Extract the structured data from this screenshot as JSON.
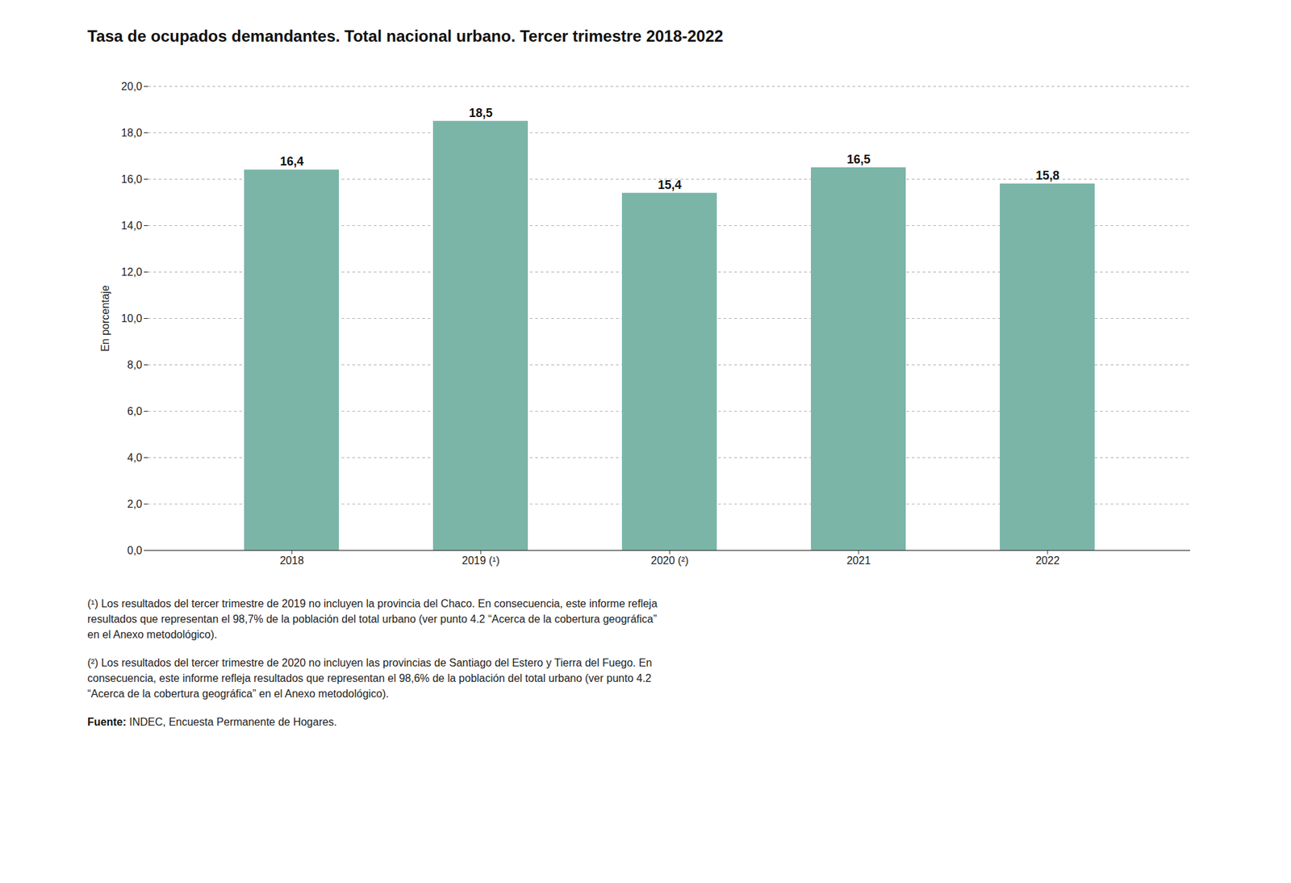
{
  "chart_data": {
    "type": "bar",
    "title": "Tasa de ocupados demandantes. Total nacional urbano. Tercer trimestre 2018-2022",
    "categories": [
      "2018",
      "2019 (¹)",
      "2020 (²)",
      "2021",
      "2022"
    ],
    "values": [
      16.4,
      18.5,
      15.4,
      16.5,
      15.8
    ],
    "value_labels": [
      "16,4",
      "18,5",
      "15,4",
      "16,5",
      "15,8"
    ],
    "data_labels": true,
    "color": "#7ab5a8",
    "ylabel": "En porcentaje",
    "ylim": [
      0,
      20
    ],
    "yticks": [
      {
        "value": 0.0,
        "label": "0,0"
      },
      {
        "value": 2.0,
        "label": "2,0"
      },
      {
        "value": 4.0,
        "label": "4,0"
      },
      {
        "value": 6.0,
        "label": "6,0"
      },
      {
        "value": 8.0,
        "label": "8,0"
      },
      {
        "value": 10.0,
        "label": "10,0"
      },
      {
        "value": 12.0,
        "label": "12,0"
      },
      {
        "value": 14.0,
        "label": "14,0"
      },
      {
        "value": 16.0,
        "label": "16,0"
      },
      {
        "value": 18.0,
        "label": "18,0"
      },
      {
        "value": 20.0,
        "label": "20,0"
      }
    ],
    "grid": true,
    "annotations": [
      "(¹) Los resultados del tercer trimestre de 2019 no incluyen la provincia del Chaco. En consecuencia, este informe refleja\nresultados que representan el 98,7% de la población del total urbano (ver punto 4.2 “Acerca de la cobertura geográfica”\nen el Anexo metodológico).",
      "(²) Los resultados del tercer trimestre de 2020 no incluyen las provincias de Santiago del Estero y Tierra del Fuego. En\nconsecuencia, este informe refleja resultados que representan el 98,6% de la población del total urbano (ver punto 4.2\n“Acerca de la cobertura geográfica” en el Anexo metodológico)."
    ],
    "source": "Fuente: INDEC, Encuesta Permanente de Hogares."
  }
}
